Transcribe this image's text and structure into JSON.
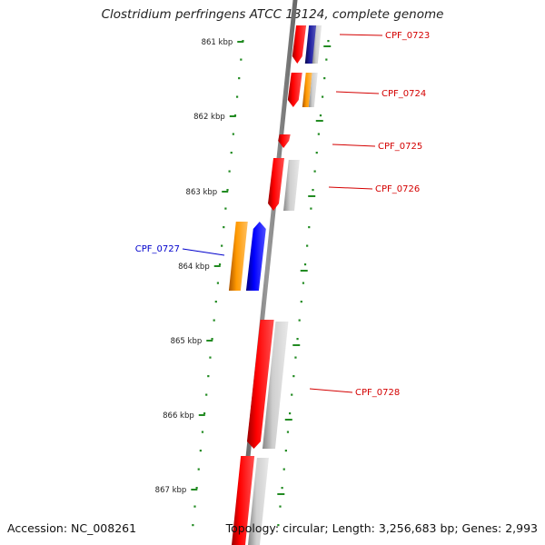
{
  "title": "Clostridium perfringens ATCC 13124, complete genome",
  "footer": {
    "accession": "Accession: NC_008261",
    "summary": "Topology: circular; Length: 3,256,683 bp; Genes: 2,993"
  },
  "colors": {
    "cds_red": "#ff0000",
    "orange": "#ff9900",
    "blue": "#0000ff",
    "navy": "#1a1a8c",
    "gray": "#bbbbbb",
    "tick_green": "#228b22",
    "label_red": "#d40000",
    "label_blue": "#0000cc"
  },
  "kbp_labels": [
    "861 kbp",
    "862 kbp",
    "863 kbp",
    "864 kbp",
    "865 kbp",
    "866 kbp",
    "867 kbp"
  ],
  "gene_labels": [
    {
      "text": "CPF_0723",
      "color": "label_red"
    },
    {
      "text": "CPF_0724",
      "color": "label_red"
    },
    {
      "text": "CPF_0725",
      "color": "label_red"
    },
    {
      "text": "CPF_0726",
      "color": "label_red"
    },
    {
      "text": "CPF_0727",
      "color": "label_blue"
    },
    {
      "text": "CPF_0728",
      "color": "label_red"
    }
  ]
}
